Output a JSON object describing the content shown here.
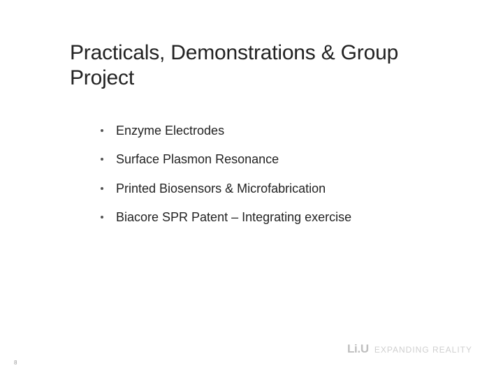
{
  "slide": {
    "title": "Practicals, Demonstrations & Group Project",
    "bullets": [
      "Enzyme Electrodes",
      "Surface Plasmon Resonance",
      "Printed Biosensors & Microfabrication",
      "Biacore SPR Patent – Integrating exercise"
    ],
    "brand": {
      "logo": "Li.U",
      "tagline": "EXPANDING REALITY"
    },
    "page_number": "8"
  },
  "style": {
    "title_fontsize": 30,
    "bullet_fontsize": 18,
    "title_color": "#222222",
    "bullet_color": "#222222",
    "dot_color": "#555555",
    "logo_color": "#bfbfbf",
    "tagline_color": "#cfcfcf",
    "background": "#ffffff"
  }
}
